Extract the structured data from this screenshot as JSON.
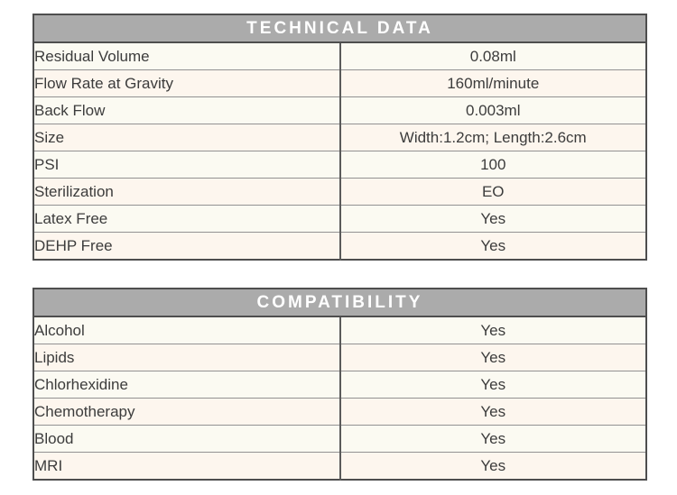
{
  "colors": {
    "header_bg": "#ababab",
    "header_text": "#ffffff",
    "row_bg_light": "#fbfaf2",
    "row_bg_cream": "#fdf6ee",
    "outer_border": "#4e4e4e",
    "row_divider": "#929292",
    "column_divider": "#5a5a5a",
    "body_text": "#3c3c3c"
  },
  "tables": [
    {
      "title": "TECHNICAL DATA",
      "rows": [
        {
          "label": "Residual Volume",
          "value": "0.08ml"
        },
        {
          "label": "Flow Rate at Gravity",
          "value": "160ml/minute"
        },
        {
          "label": "Back Flow",
          "value": "0.003ml"
        },
        {
          "label": "Size",
          "value": "Width:1.2cm; Length:2.6cm"
        },
        {
          "label": "PSI",
          "value": "100"
        },
        {
          "label": "Sterilization",
          "value": "EO"
        },
        {
          "label": "Latex Free",
          "value": "Yes"
        },
        {
          "label": "DEHP Free",
          "value": "Yes"
        }
      ]
    },
    {
      "title": "COMPATIBILITY",
      "rows": [
        {
          "label": "Alcohol",
          "value": "Yes"
        },
        {
          "label": "Lipids",
          "value": "Yes"
        },
        {
          "label": "Chlorhexidine",
          "value": "Yes"
        },
        {
          "label": "Chemotherapy",
          "value": "Yes"
        },
        {
          "label": "Blood",
          "value": "Yes"
        },
        {
          "label": "MRI",
          "value": "Yes"
        }
      ]
    }
  ]
}
